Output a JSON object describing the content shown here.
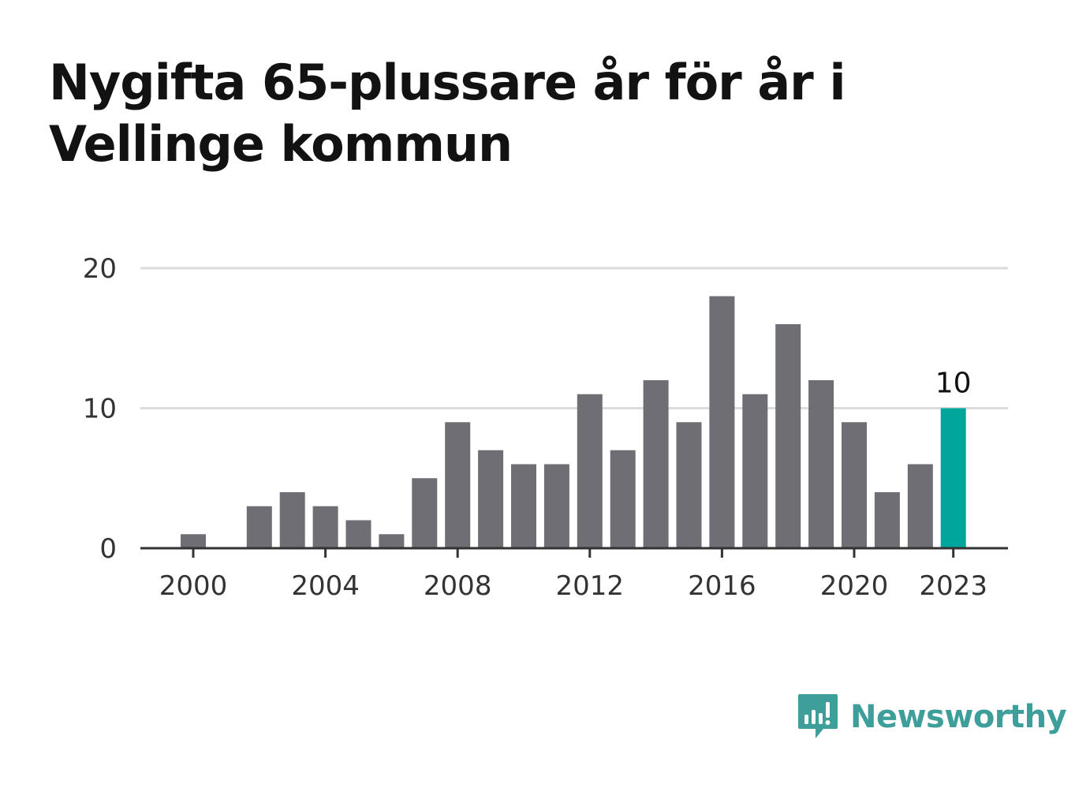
{
  "title": "Nygifta 65-plussare år för år i Vellinge kommun",
  "brand": {
    "name": "Newsworthy",
    "color": "#3e9e9a",
    "icon": "chart-speech-bubble-icon"
  },
  "colors": {
    "bar": "#6f6e74",
    "highlight": "#00a59b",
    "grid": "#dcdcdc",
    "axis": "#333333",
    "text": "#333333"
  },
  "chart_data": {
    "type": "bar",
    "title": "Nygifta 65-plussare år för år i Vellinge kommun",
    "xlabel": "",
    "ylabel": "",
    "ylim": [
      0,
      20
    ],
    "yticks": [
      0,
      10,
      20
    ],
    "xticks": [
      2000,
      2004,
      2008,
      2012,
      2016,
      2020,
      2023
    ],
    "grid": true,
    "categories": [
      2000,
      2001,
      2002,
      2003,
      2004,
      2005,
      2006,
      2007,
      2008,
      2009,
      2010,
      2011,
      2012,
      2013,
      2014,
      2015,
      2016,
      2017,
      2018,
      2019,
      2020,
      2021,
      2022,
      2023
    ],
    "values": [
      1,
      0,
      3,
      4,
      3,
      2,
      1,
      5,
      9,
      7,
      6,
      6,
      11,
      7,
      12,
      9,
      18,
      11,
      16,
      12,
      9,
      4,
      6,
      10
    ],
    "highlight_index": 23,
    "annotations": [
      {
        "category": 2023,
        "text": "10"
      }
    ]
  }
}
